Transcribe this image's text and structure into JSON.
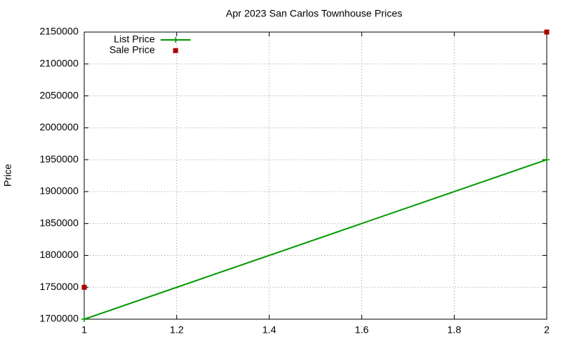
{
  "chart_data": {
    "type": "line",
    "title": "Apr 2023 San Carlos Townhouse Prices",
    "y_label": "Price",
    "x": [
      1,
      2
    ],
    "series": [
      {
        "name": "List Price",
        "color": "#009900",
        "line": true,
        "marker": "plus",
        "values": [
          1700000,
          1950000
        ]
      },
      {
        "name": "Sale Price",
        "color": "#aa0000",
        "line": false,
        "marker": "square",
        "values": [
          1750000,
          2150000
        ]
      }
    ],
    "xlim": [
      1,
      2
    ],
    "xticks": [
      1,
      1.2,
      1.4,
      1.6,
      1.8,
      2
    ],
    "ylim": [
      1700000,
      2150000
    ],
    "yticks": [
      1700000,
      1750000,
      1800000,
      1850000,
      1900000,
      1950000,
      2000000,
      2050000,
      2100000,
      2150000
    ],
    "grid": true,
    "legend": "top-left"
  }
}
